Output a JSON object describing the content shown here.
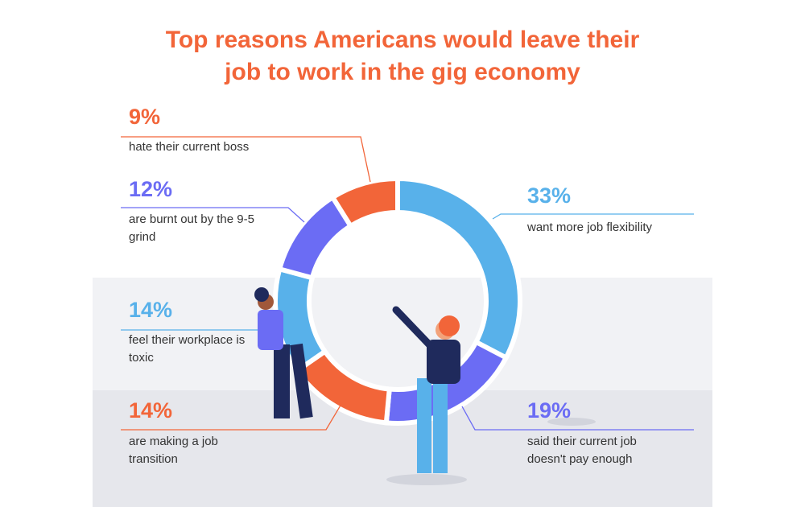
{
  "chart_data": {
    "type": "donut",
    "title": "Top reasons Americans would leave their job to work in the gig economy",
    "categories": [
      "want more job flexibility",
      "said their current job doesn't pay enough",
      "are making a job transition",
      "feel their workplace is toxic",
      "are burnt out by the 9-5 grind",
      "hate their current boss"
    ],
    "values": [
      33,
      19,
      14,
      14,
      12,
      9
    ],
    "value_labels": [
      "33%",
      "19%",
      "14%",
      "14%",
      "12%",
      "9%"
    ],
    "colors": [
      "#58b1ea",
      "#6b6cf4",
      "#f26539",
      "#58b1ea",
      "#6b6cf4",
      "#f26539"
    ]
  }
}
